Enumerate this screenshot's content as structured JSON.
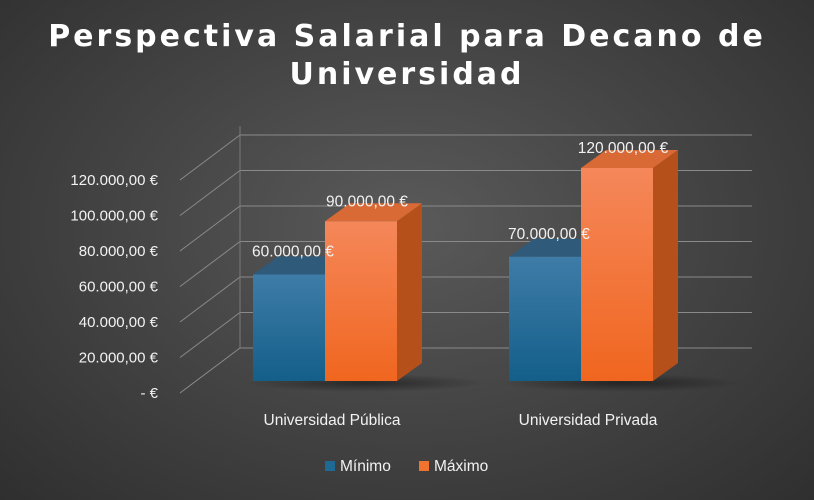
{
  "chart_data": {
    "type": "bar",
    "title": "Perspectiva Salarial para Decano de Universidad",
    "categories": [
      "Universidad Pública",
      "Universidad Privada"
    ],
    "series": [
      {
        "name": "Mínimo",
        "values": [
          60000,
          70000
        ],
        "labels": [
          "60.000,00 €",
          "70.000,00 €"
        ]
      },
      {
        "name": "Máximo",
        "values": [
          90000,
          120000
        ],
        "labels": [
          "90.000,00 €",
          "120.000,00 €"
        ]
      }
    ],
    "y_ticks": [
      {
        "value": 0,
        "label": "-  €"
      },
      {
        "value": 20000,
        "label": "20.000,00 €"
      },
      {
        "value": 40000,
        "label": "40.000,00 €"
      },
      {
        "value": 60000,
        "label": "60.000,00 €"
      },
      {
        "value": 80000,
        "label": "80.000,00 €"
      },
      {
        "value": 100000,
        "label": "100.000,00 €"
      },
      {
        "value": 120000,
        "label": "120.000,00 €"
      }
    ],
    "ylim": [
      0,
      120000
    ],
    "grid": true,
    "three_d": true,
    "legend_position": "bottom",
    "colors": {
      "Mínimo": "#1f6a94",
      "Máximo": "#f0732f"
    }
  }
}
